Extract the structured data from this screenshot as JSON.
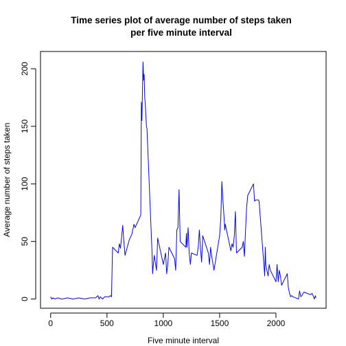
{
  "chart_data": {
    "type": "line",
    "title_lines": [
      "Time series plot of average number of steps taken",
      "per five minute interval"
    ],
    "xlabel": "Five minute interval",
    "ylabel": "Average number of steps taken",
    "xlim": [
      -90,
      2445
    ],
    "ylim": [
      -8,
      215
    ],
    "xticks": [
      0,
      500,
      1000,
      1500,
      2000
    ],
    "yticks": [
      0,
      50,
      100,
      150,
      200
    ],
    "grid": false,
    "line_color": "#0000ff",
    "series": [
      {
        "x": [
          0,
          10,
          20,
          40,
          60,
          100,
          150,
          200,
          250,
          300,
          350,
          400,
          420,
          430,
          440,
          450,
          460,
          480,
          500,
          520,
          530,
          540,
          550,
          600,
          610,
          620,
          640,
          650,
          660,
          700,
          720,
          740,
          750,
          800,
          805,
          810,
          815,
          820,
          825,
          830,
          835,
          840,
          845,
          850,
          855,
          900,
          905,
          910,
          920,
          940,
          950,
          1000,
          1010,
          1020,
          1030,
          1040,
          1050,
          1100,
          1110,
          1120,
          1130,
          1140,
          1150,
          1200,
          1205,
          1210,
          1220,
          1230,
          1240,
          1250,
          1300,
          1310,
          1320,
          1330,
          1340,
          1350,
          1400,
          1410,
          1420,
          1430,
          1440,
          1450,
          1500,
          1510,
          1520,
          1530,
          1540,
          1545,
          1550,
          1600,
          1610,
          1620,
          1630,
          1640,
          1650,
          1700,
          1710,
          1720,
          1730,
          1740,
          1750,
          1800,
          1810,
          1820,
          1830,
          1840,
          1845,
          1850,
          1900,
          1905,
          1910,
          1920,
          1930,
          1940,
          1950,
          2000,
          2010,
          2020,
          2030,
          2040,
          2050,
          2100,
          2110,
          2120,
          2130,
          2140,
          2150,
          2200,
          2210,
          2220,
          2230,
          2240,
          2250,
          2300,
          2310,
          2320,
          2330,
          2340,
          2350,
          2355
        ],
        "values": [
          2,
          0,
          1,
          0,
          1,
          0,
          1,
          0,
          1,
          0,
          1,
          1,
          3,
          0,
          2,
          1,
          0,
          2,
          2,
          2,
          3,
          2,
          45,
          40,
          48,
          44,
          64,
          50,
          38,
          52,
          56,
          65,
          62,
          73,
          171,
          155,
          180,
          206,
          190,
          195,
          175,
          170,
          160,
          150,
          148,
          40,
          22,
          28,
          38,
          25,
          53,
          30,
          35,
          40,
          22,
          30,
          45,
          35,
          25,
          60,
          62,
          95,
          50,
          45,
          57,
          45,
          62,
          40,
          30,
          40,
          38,
          45,
          60,
          44,
          32,
          55,
          40,
          30,
          45,
          37,
          31,
          25,
          55,
          70,
          102,
          85,
          70,
          60,
          65,
          42,
          48,
          45,
          55,
          76,
          40,
          45,
          50,
          37,
          60,
          80,
          90,
          100,
          85,
          86,
          86,
          86,
          86,
          85,
          20,
          45,
          30,
          25,
          20,
          30,
          25,
          15,
          30,
          15,
          25,
          20,
          12,
          22,
          10,
          5,
          2,
          3,
          2,
          0,
          7,
          2,
          3,
          5,
          6,
          4,
          4,
          5,
          3,
          0,
          3,
          1
        ]
      }
    ]
  }
}
